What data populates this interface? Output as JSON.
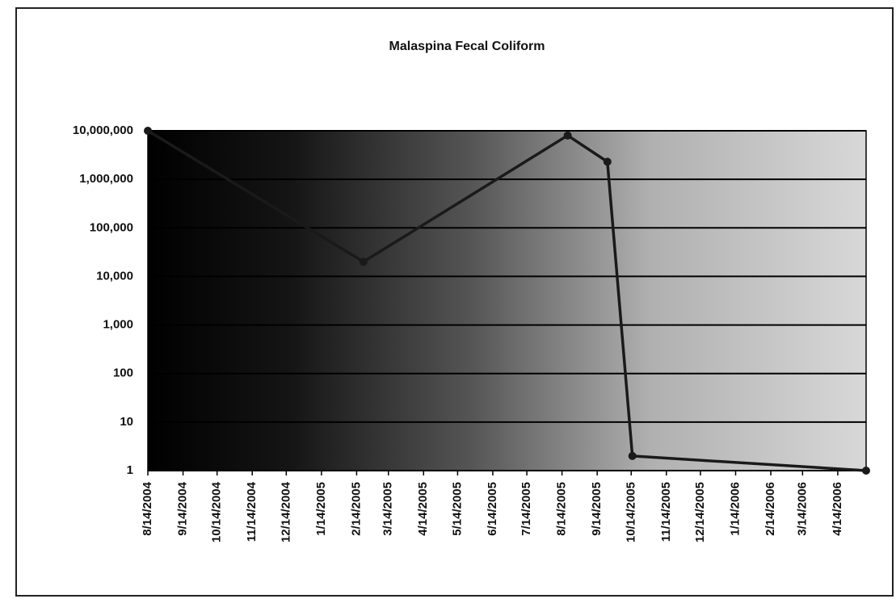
{
  "chart_data": {
    "type": "line",
    "title": "Malaspina Fecal Coliform",
    "log_scale": true,
    "grid": true,
    "x": [
      "2004-08-14",
      "2005-02-20",
      "2005-08-19",
      "2005-09-23",
      "2005-10-15",
      "2006-05-09"
    ],
    "series": [
      {
        "name": "Fecal Coliform",
        "color": "#1a1a1a",
        "values": [
          10000000,
          20000,
          8000000,
          2300000,
          2,
          1
        ]
      }
    ],
    "xlim": [
      "2004-08-14",
      "2006-05-09"
    ],
    "xticks": [
      {
        "value": "2004-08-14",
        "label": "8/14/2004"
      },
      {
        "value": "2004-09-14",
        "label": "9/14/2004"
      },
      {
        "value": "2004-10-14",
        "label": "10/14/2004"
      },
      {
        "value": "2004-11-14",
        "label": "11/14/2004"
      },
      {
        "value": "2004-12-14",
        "label": "12/14/2004"
      },
      {
        "value": "2005-01-14",
        "label": "1/14/2005"
      },
      {
        "value": "2005-02-14",
        "label": "2/14/2005"
      },
      {
        "value": "2005-03-14",
        "label": "3/14/2005"
      },
      {
        "value": "2005-04-14",
        "label": "4/14/2005"
      },
      {
        "value": "2005-05-14",
        "label": "5/14/2005"
      },
      {
        "value": "2005-06-14",
        "label": "6/14/2005"
      },
      {
        "value": "2005-07-14",
        "label": "7/14/2005"
      },
      {
        "value": "2005-08-14",
        "label": "8/14/2005"
      },
      {
        "value": "2005-09-14",
        "label": "9/14/2005"
      },
      {
        "value": "2005-10-14",
        "label": "10/14/2005"
      },
      {
        "value": "2005-11-14",
        "label": "11/14/2005"
      },
      {
        "value": "2005-12-14",
        "label": "12/14/2005"
      },
      {
        "value": "2006-01-14",
        "label": "1/14/2006"
      },
      {
        "value": "2006-02-14",
        "label": "2/14/2006"
      },
      {
        "value": "2006-03-14",
        "label": "3/14/2006"
      },
      {
        "value": "2006-04-14",
        "label": "4/14/2006"
      }
    ],
    "ylim": [
      1,
      10000000
    ],
    "yticks": [
      1,
      10,
      100,
      {
        "value": 1000,
        "label": "1,000"
      },
      {
        "value": 10000,
        "label": "10,000"
      },
      {
        "value": 100000,
        "label": "100,000"
      },
      {
        "value": 1000000,
        "label": "1,000,000"
      },
      {
        "value": 10000000,
        "label": "10,000,000"
      }
    ]
  }
}
